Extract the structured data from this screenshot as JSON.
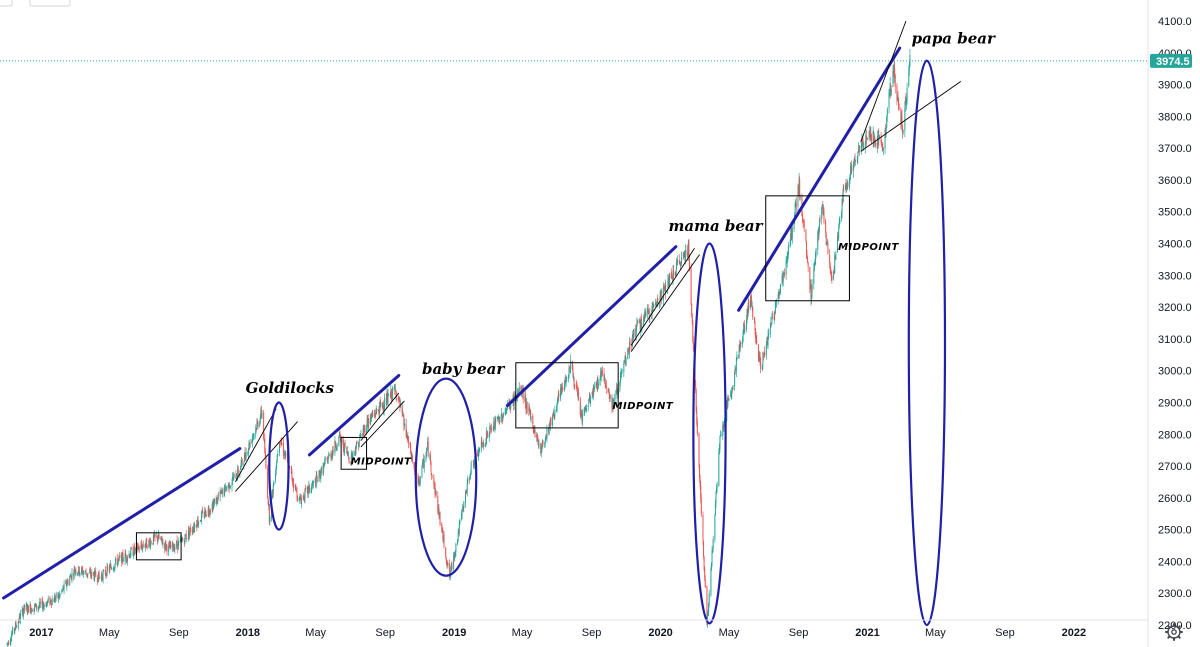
{
  "chart_data": {
    "type": "candlestick",
    "y_axis": {
      "min": 2150,
      "max": 4140,
      "ticks": [
        4100.0,
        4000.0,
        3900.0,
        3800.0,
        3700.0,
        3600.0,
        3500.0,
        3400.0,
        3300.0,
        3200.0,
        3100.0,
        3000.0,
        2900.0,
        2800.0,
        2700.0,
        2600.0,
        2500.0,
        2400.0,
        2300.0,
        2200.0
      ],
      "tick_labels": [
        "4100.0",
        "4000.0",
        "3900.0",
        "3800.0",
        "3700.0",
        "3600.0",
        "3500.0",
        "3400.0",
        "3300.0",
        "3200.0",
        "3100.0",
        "3000.0",
        "2900.0",
        "2800.0",
        "2700.0",
        "2600.0",
        "2500.0",
        "2400.0",
        "2300.0",
        "2200.0"
      ]
    },
    "x_axis": {
      "range": [
        "2016-10-25",
        "2022-03-20"
      ],
      "ticks": [
        {
          "date": "2017-01-01",
          "label": "2017",
          "year": true
        },
        {
          "date": "2017-05-01",
          "label": "May",
          "year": false
        },
        {
          "date": "2017-09-01",
          "label": "Sep",
          "year": false
        },
        {
          "date": "2018-01-01",
          "label": "2018",
          "year": true
        },
        {
          "date": "2018-05-01",
          "label": "May",
          "year": false
        },
        {
          "date": "2018-09-01",
          "label": "Sep",
          "year": false
        },
        {
          "date": "2019-01-01",
          "label": "2019",
          "year": true
        },
        {
          "date": "2019-05-01",
          "label": "May",
          "year": false
        },
        {
          "date": "2019-09-01",
          "label": "Sep",
          "year": false
        },
        {
          "date": "2020-01-01",
          "label": "2020",
          "year": true
        },
        {
          "date": "2020-05-01",
          "label": "May",
          "year": false
        },
        {
          "date": "2020-09-01",
          "label": "Sep",
          "year": false
        },
        {
          "date": "2021-01-01",
          "label": "2021",
          "year": true
        },
        {
          "date": "2021-05-01",
          "label": "May",
          "year": false
        },
        {
          "date": "2021-09-01",
          "label": "Sep",
          "year": false
        },
        {
          "date": "2022-01-01",
          "label": "2022",
          "year": true
        }
      ]
    },
    "last_price": 3974.5,
    "last_price_label": "3974.5",
    "grid": false,
    "colors": {
      "up": "#26a69a",
      "down": "#ef5350",
      "annotation_blue": "#1f1fa8",
      "price_tag": "#26a69a"
    },
    "series": [
      {
        "price_path": [
          [
            "2016-11-01",
            2140
          ],
          [
            "2016-12-01",
            2250
          ],
          [
            "2016-12-31",
            2260
          ],
          [
            "2017-02-01",
            2290
          ],
          [
            "2017-03-01",
            2375
          ],
          [
            "2017-04-15",
            2350
          ],
          [
            "2017-05-15",
            2400
          ],
          [
            "2017-06-20",
            2440
          ],
          [
            "2017-07-25",
            2475
          ],
          [
            "2017-08-15",
            2440
          ],
          [
            "2017-09-05",
            2460
          ],
          [
            "2017-10-01",
            2520
          ],
          [
            "2017-11-01",
            2580
          ],
          [
            "2017-12-15",
            2680
          ],
          [
            "2018-01-26",
            2870
          ],
          [
            "2018-02-08",
            2540
          ],
          [
            "2018-02-26",
            2790
          ],
          [
            "2018-04-02",
            2590
          ],
          [
            "2018-05-01",
            2650
          ],
          [
            "2018-06-12",
            2790
          ],
          [
            "2018-07-01",
            2720
          ],
          [
            "2018-08-01",
            2840
          ],
          [
            "2018-09-20",
            2940
          ],
          [
            "2018-10-29",
            2640
          ],
          [
            "2018-11-15",
            2760
          ],
          [
            "2018-12-24",
            2350
          ],
          [
            "2019-01-31",
            2700
          ],
          [
            "2019-03-01",
            2800
          ],
          [
            "2019-04-30",
            2940
          ],
          [
            "2019-06-03",
            2750
          ],
          [
            "2019-07-26",
            3020
          ],
          [
            "2019-08-15",
            2850
          ],
          [
            "2019-09-20",
            3000
          ],
          [
            "2019-10-08",
            2890
          ],
          [
            "2019-11-15",
            3120
          ],
          [
            "2019-12-31",
            3230
          ],
          [
            "2020-02-19",
            3390
          ],
          [
            "2020-03-23",
            2200
          ],
          [
            "2020-04-15",
            2780
          ],
          [
            "2020-06-08",
            3230
          ],
          [
            "2020-06-26",
            3010
          ],
          [
            "2020-08-15",
            3380
          ],
          [
            "2020-09-02",
            3580
          ],
          [
            "2020-09-23",
            3240
          ],
          [
            "2020-10-12",
            3530
          ],
          [
            "2020-10-30",
            3270
          ],
          [
            "2020-11-20",
            3570
          ],
          [
            "2020-12-31",
            3750
          ],
          [
            "2021-01-29",
            3710
          ],
          [
            "2021-02-15",
            3950
          ],
          [
            "2021-03-04",
            3760
          ],
          [
            "2021-03-17",
            3974.5
          ]
        ]
      }
    ],
    "annotations": {
      "labels": [
        {
          "text": "Goldilocks",
          "date": "2017-12-28",
          "value": 2930
        },
        {
          "text": "baby bear",
          "date": "2018-11-05",
          "value": 2990
        },
        {
          "text": "mama bear",
          "date": "2020-01-15",
          "value": 3440
        },
        {
          "text": "papa bear",
          "date": "2021-03-20",
          "value": 4030
        },
        {
          "text": "MIDPOINT",
          "date": "2018-07-02",
          "value": 2705
        },
        {
          "text": "MIDPOINT",
          "date": "2019-10-08",
          "value": 2880
        },
        {
          "text": "MIDPOINT",
          "date": "2020-11-10",
          "value": 3380
        }
      ],
      "trend_lines_blue": [
        [
          [
            "2016-10-26",
            2285
          ],
          [
            "2017-12-18",
            2755
          ]
        ],
        [
          [
            "2018-04-20",
            2735
          ],
          [
            "2018-09-25",
            2985
          ]
        ],
        [
          [
            "2019-04-05",
            2890
          ],
          [
            "2020-01-28",
            3390
          ]
        ],
        [
          [
            "2020-05-18",
            3190
          ],
          [
            "2021-02-27",
            4015
          ]
        ]
      ],
      "ellipses_blue": [
        {
          "center": [
            "2018-02-25",
            2700
          ],
          "date_span": [
            "2018-02-08",
            "2018-03-14"
          ],
          "value_span": [
            2500,
            2900
          ]
        },
        {
          "center": [
            "2018-12-18",
            2665
          ],
          "date_span": [
            "2018-10-25",
            "2019-02-09"
          ],
          "value_span": [
            2355,
            2975
          ]
        },
        {
          "center": [
            "2020-03-27",
            2800
          ],
          "date_span": [
            "2020-02-28",
            "2020-04-25"
          ],
          "value_span": [
            2205,
            3400
          ]
        },
        {
          "center": [
            "2021-04-16",
            3585
          ],
          "date_span": [
            "2021-03-15",
            "2021-05-18"
          ],
          "value_span": [
            2200,
            3975
          ]
        }
      ],
      "boxes": [
        {
          "date_span": [
            "2017-06-18",
            "2017-09-05"
          ],
          "value_span": [
            2405,
            2490
          ]
        },
        {
          "date_span": [
            "2018-06-15",
            "2018-07-30"
          ],
          "value_span": [
            2690,
            2790
          ]
        },
        {
          "date_span": [
            "2019-04-20",
            "2019-10-18"
          ],
          "value_span": [
            2820,
            3025
          ]
        },
        {
          "date_span": [
            "2020-07-05",
            "2020-11-30"
          ],
          "value_span": [
            3220,
            3550
          ]
        }
      ],
      "trend_lines_black": [
        [
          [
            "2017-12-10",
            2650
          ],
          [
            "2018-02-20",
            2880
          ]
        ],
        [
          [
            "2017-12-10",
            2620
          ],
          [
            "2018-03-30",
            2840
          ]
        ],
        [
          [
            "2018-07-20",
            2780
          ],
          [
            "2018-09-25",
            2930
          ]
        ],
        [
          [
            "2018-07-20",
            2760
          ],
          [
            "2018-10-05",
            2905
          ]
        ],
        [
          [
            "2019-11-10",
            3080
          ],
          [
            "2020-03-01",
            3385
          ]
        ],
        [
          [
            "2019-11-10",
            3060
          ],
          [
            "2020-03-10",
            3365
          ]
        ],
        [
          [
            "2020-12-20",
            3720
          ],
          [
            "2021-03-10",
            4100
          ]
        ],
        [
          [
            "2020-12-20",
            3690
          ],
          [
            "2021-06-15",
            3910
          ]
        ]
      ]
    }
  }
}
